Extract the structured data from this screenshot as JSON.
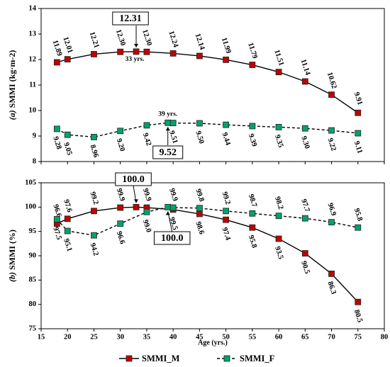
{
  "chart_data": [
    {
      "type": "line",
      "panel_label": "(a)",
      "ylabel": "SMMI (kg·m-2)",
      "ylim": [
        8,
        14
      ],
      "yticks": [
        "8",
        "9",
        "10",
        "11",
        "12",
        "13",
        "14"
      ],
      "x": [
        18,
        20,
        25,
        30,
        33,
        35,
        40,
        45,
        50,
        55,
        60,
        65,
        70,
        75
      ],
      "series": [
        {
          "name": "SMMI_M",
          "color": "#c00000",
          "style": "solid",
          "points": [
            [
              18,
              11.89
            ],
            [
              20,
              12.01
            ],
            [
              25,
              12.21
            ],
            [
              30,
              12.3
            ],
            [
              33,
              12.31
            ],
            [
              35,
              12.3
            ],
            [
              40,
              12.24
            ],
            [
              45,
              12.14
            ],
            [
              50,
              11.99
            ],
            [
              55,
              11.79
            ],
            [
              60,
              11.51
            ],
            [
              65,
              11.14
            ],
            [
              70,
              10.62
            ],
            [
              75,
              9.91
            ]
          ],
          "labels": [
            "11.89",
            "12.01",
            "12.21",
            "12.30",
            "",
            "12.30",
            "12.24",
            "12.14",
            "11.99",
            "11.79",
            "11.51",
            "11.14",
            "10.62",
            "9.91"
          ]
        },
        {
          "name": "SMMI_F",
          "color": "#00a36c",
          "style": "dashed",
          "points": [
            [
              18,
              9.28
            ],
            [
              20,
              9.05
            ],
            [
              25,
              8.96
            ],
            [
              30,
              9.2
            ],
            [
              35,
              9.42
            ],
            [
              39,
              9.52
            ],
            [
              40,
              9.51
            ],
            [
              45,
              9.5
            ],
            [
              50,
              9.44
            ],
            [
              55,
              9.39
            ],
            [
              60,
              9.35
            ],
            [
              65,
              9.3
            ],
            [
              70,
              9.22
            ],
            [
              75,
              9.11
            ]
          ],
          "labels": [
            "9.28",
            "9.05",
            "8.96",
            "9.20",
            "9.42",
            "",
            "9.51",
            "9.50",
            "9.44",
            "9.39",
            "9.35",
            "9.30",
            "9.22",
            "9.11"
          ]
        }
      ],
      "annotations": [
        {
          "series": "SMMI_M",
          "x": 33,
          "peak_value": "12.31",
          "age_text": "33 yrs."
        },
        {
          "series": "SMMI_F",
          "x": 39,
          "peak_value": "9.52",
          "age_text": "39 yrs."
        }
      ]
    },
    {
      "type": "line",
      "panel_label": "(b)",
      "ylabel": "SMMI (%)",
      "ylim": [
        75,
        105
      ],
      "yticks": [
        "75",
        "80",
        "85",
        "90",
        "95",
        "100",
        "105"
      ],
      "xlabel": "Age (yrs.)",
      "xlim": [
        15,
        80
      ],
      "xticks": [
        "15",
        "20",
        "25",
        "30",
        "35",
        "40",
        "45",
        "50",
        "55",
        "60",
        "65",
        "70",
        "75",
        "80"
      ],
      "series": [
        {
          "name": "SMMI_M",
          "color": "#c00000",
          "style": "solid",
          "points": [
            [
              18,
              96.6
            ],
            [
              20,
              97.6
            ],
            [
              25,
              99.2
            ],
            [
              30,
              99.9
            ],
            [
              33,
              100.0
            ],
            [
              35,
              99.9
            ],
            [
              40,
              99.5
            ],
            [
              45,
              98.6
            ],
            [
              50,
              97.4
            ],
            [
              55,
              95.8
            ],
            [
              60,
              93.5
            ],
            [
              65,
              90.5
            ],
            [
              70,
              86.3
            ],
            [
              75,
              80.5
            ]
          ],
          "labels": [
            "96.6",
            "97.6",
            "99.2",
            "99.9",
            "",
            "99.9",
            "99.5",
            "98.6",
            "97.4",
            "95.8",
            "93.5",
            "90.5",
            "86.3",
            "80.5"
          ]
        },
        {
          "name": "SMMI_F",
          "color": "#00a36c",
          "style": "dashed",
          "points": [
            [
              18,
              97.5
            ],
            [
              20,
              95.1
            ],
            [
              25,
              94.2
            ],
            [
              30,
              96.6
            ],
            [
              35,
              99.0
            ],
            [
              39,
              100.0
            ],
            [
              40,
              99.9
            ],
            [
              45,
              99.8
            ],
            [
              50,
              99.2
            ],
            [
              55,
              98.7
            ],
            [
              60,
              98.2
            ],
            [
              65,
              97.7
            ],
            [
              70,
              96.9
            ],
            [
              75,
              95.8
            ]
          ],
          "labels": [
            "97.5",
            "95.1",
            "94.2",
            "96.6",
            "99.0",
            "",
            "99.9",
            "99.8",
            "99.2",
            "98.7",
            "98.2",
            "97.7",
            "96.9",
            "95.8"
          ]
        }
      ],
      "annotations": [
        {
          "series": "SMMI_M",
          "x": 33,
          "peak_value": "100.0"
        },
        {
          "series": "SMMI_F",
          "x": 39,
          "peak_value": "100.0"
        }
      ]
    }
  ],
  "legend": {
    "placement": "bottom",
    "items": [
      {
        "name": "SMMI_M",
        "color": "#c00000",
        "style": "solid"
      },
      {
        "name": "SMMI_F",
        "color": "#00a36c",
        "style": "dashed"
      }
    ]
  }
}
